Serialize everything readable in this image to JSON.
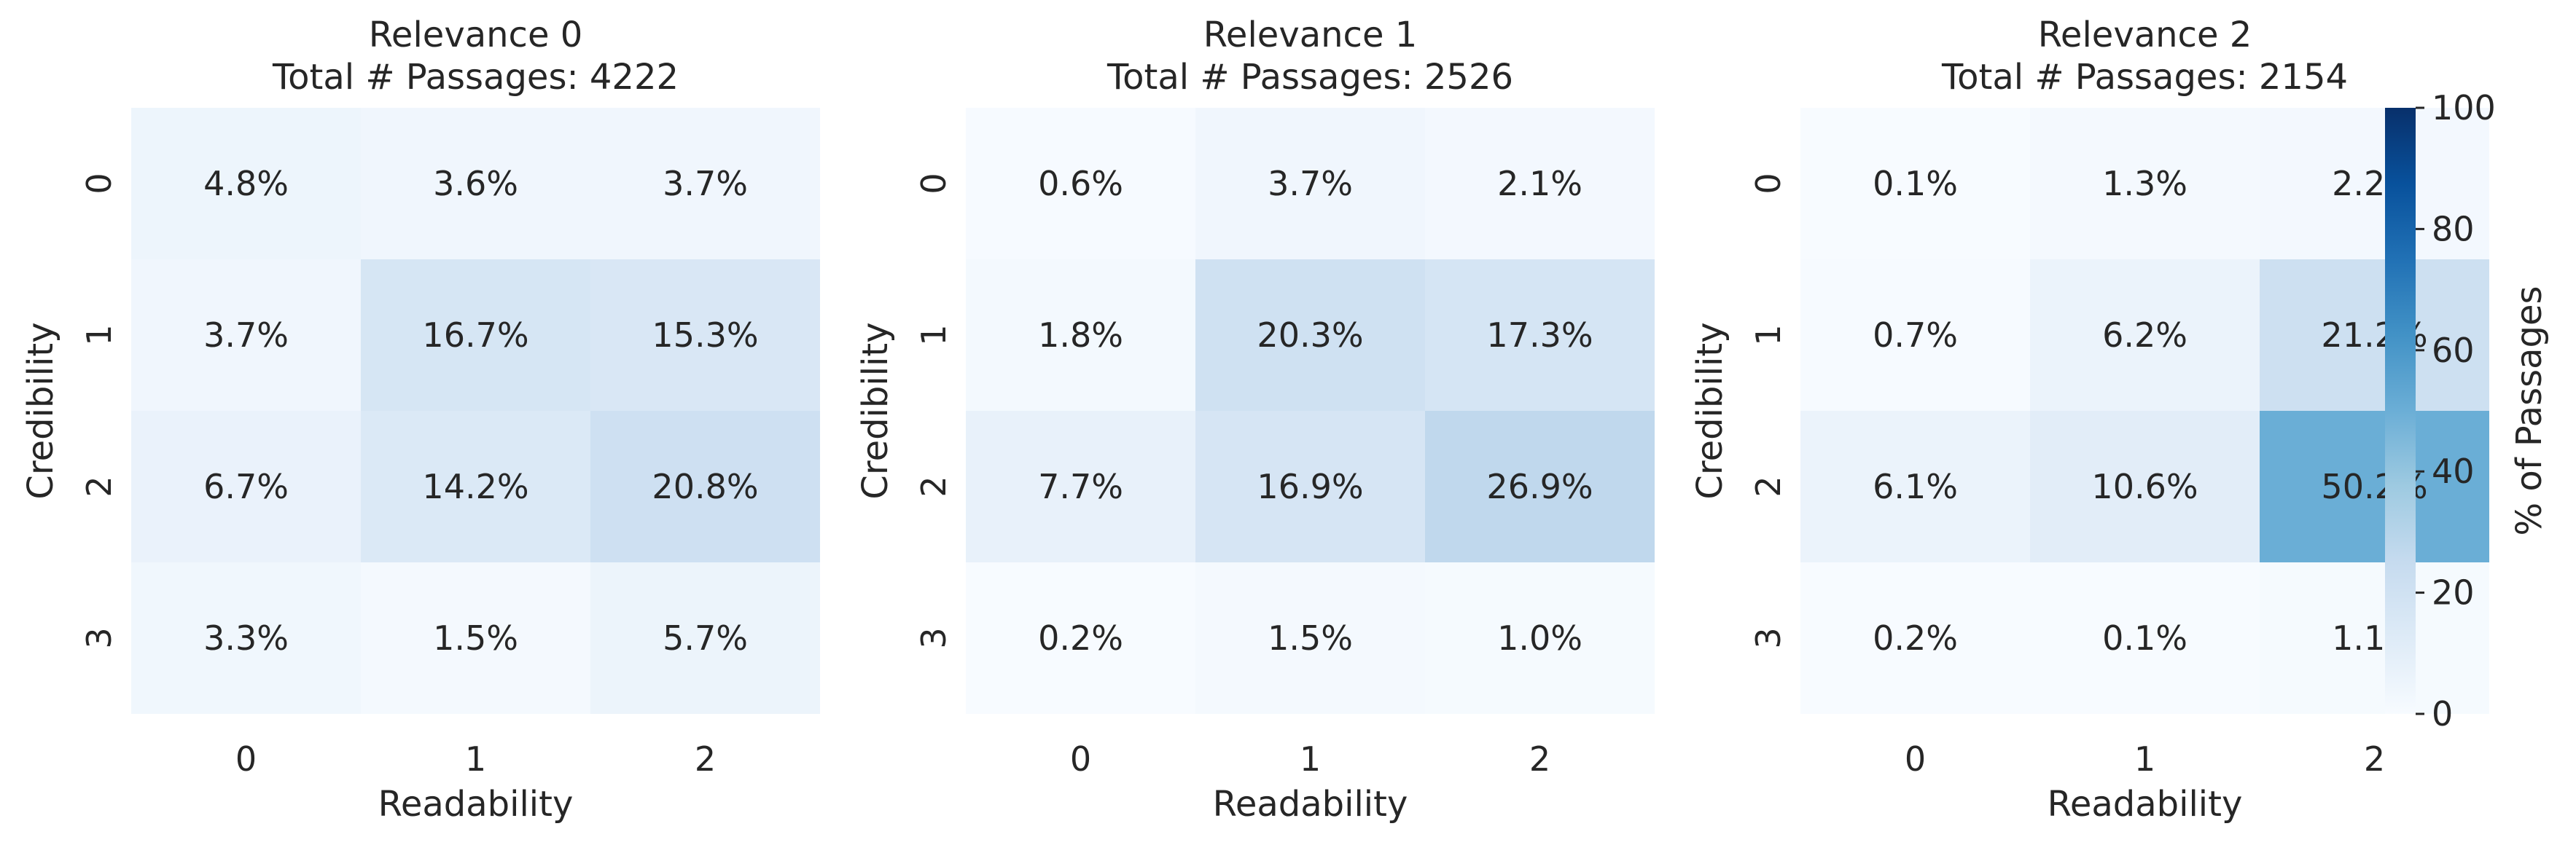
{
  "chart_data": {
    "type": "heatmap",
    "colormap": "Blues",
    "colorbar": {
      "label": "% of Passages",
      "range": [
        0,
        100
      ],
      "ticks": [
        "0",
        "20",
        "40",
        "60",
        "80",
        "100"
      ]
    },
    "panels": [
      {
        "title_line1": "Relevance 0",
        "title_line2": "Total # Passages: 4222",
        "xlabel": "Readability",
        "ylabel": "Credibility",
        "x_ticks": [
          "0",
          "1",
          "2"
        ],
        "y_ticks": [
          "0",
          "1",
          "2",
          "3"
        ],
        "values": [
          [
            4.8,
            3.6,
            3.7
          ],
          [
            3.7,
            16.7,
            15.3
          ],
          [
            6.7,
            14.2,
            20.8
          ],
          [
            3.3,
            1.5,
            5.7
          ]
        ],
        "labels": [
          [
            "4.8%",
            "3.6%",
            "3.7%"
          ],
          [
            "3.7%",
            "16.7%",
            "15.3%"
          ],
          [
            "6.7%",
            "14.2%",
            "20.8%"
          ],
          [
            "3.3%",
            "1.5%",
            "5.7%"
          ]
        ]
      },
      {
        "title_line1": "Relevance 1",
        "title_line2": "Total # Passages: 2526",
        "xlabel": "Readability",
        "ylabel": "Credibility",
        "x_ticks": [
          "0",
          "1",
          "2"
        ],
        "y_ticks": [
          "0",
          "1",
          "2",
          "3"
        ],
        "values": [
          [
            0.6,
            3.7,
            2.1
          ],
          [
            1.8,
            20.3,
            17.3
          ],
          [
            7.7,
            16.9,
            26.9
          ],
          [
            0.2,
            1.5,
            1.0
          ]
        ],
        "labels": [
          [
            "0.6%",
            "3.7%",
            "2.1%"
          ],
          [
            "1.8%",
            "20.3%",
            "17.3%"
          ],
          [
            "7.7%",
            "16.9%",
            "26.9%"
          ],
          [
            "0.2%",
            "1.5%",
            "1.0%"
          ]
        ]
      },
      {
        "title_line1": "Relevance 2",
        "title_line2": "Total # Passages: 2154",
        "xlabel": "Readability",
        "ylabel": "Credibility",
        "x_ticks": [
          "0",
          "1",
          "2"
        ],
        "y_ticks": [
          "0",
          "1",
          "2",
          "3"
        ],
        "values": [
          [
            0.1,
            1.3,
            2.2
          ],
          [
            0.7,
            6.2,
            21.2
          ],
          [
            6.1,
            10.6,
            50.2
          ],
          [
            0.2,
            0.1,
            1.1
          ]
        ],
        "labels": [
          [
            "0.1%",
            "1.3%",
            "2.2%"
          ],
          [
            "0.7%",
            "6.2%",
            "21.2%"
          ],
          [
            "6.1%",
            "10.6%",
            "50.2%"
          ],
          [
            "0.2%",
            "0.1%",
            "1.1%"
          ]
        ]
      }
    ]
  }
}
